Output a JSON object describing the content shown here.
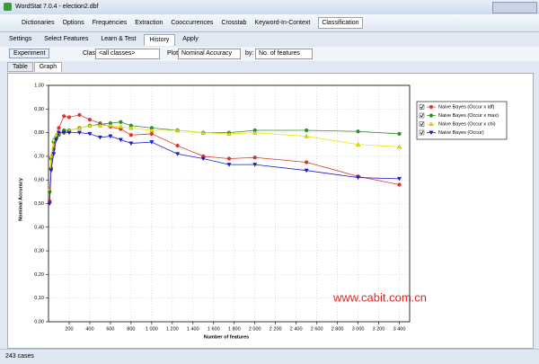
{
  "window": {
    "title": "WordStat 7.0.4 - election2.dbf"
  },
  "menu": [
    "Dictionaries",
    "Options",
    "Frequencies",
    "Extraction",
    "Cooccurrences",
    "Crosstab",
    "Keyword-In-Context",
    "Classification"
  ],
  "subtabs": [
    "Settings",
    "Select Features",
    "Learn & Test",
    "History",
    "Apply"
  ],
  "toolbar": {
    "button": "Experiment",
    "class_label": "Class:",
    "class_value": "<all classes>",
    "plot_label": "Plot:",
    "plot_value": "Nominal Accuracy",
    "by_label": "by:",
    "by_value": "No. of features"
  },
  "view_tabs": [
    "Table",
    "Graph"
  ],
  "watermark": "www.cabit.com.cn",
  "status": "243 cases",
  "chart_data": {
    "type": "line",
    "x_label": "Number of features",
    "y_label": "Nominal Accuracy",
    "x": [
      10,
      25,
      50,
      75,
      100,
      150,
      200,
      300,
      400,
      500,
      600,
      700,
      800,
      1000,
      1250,
      1500,
      1750,
      2000,
      2500,
      3000,
      3400
    ],
    "series": [
      {
        "name": "Naive Bayes (Occur x idf)",
        "color": "#e03030",
        "marker": "circle",
        "values": [
          0.51,
          0.65,
          0.73,
          0.78,
          0.82,
          0.87,
          0.865,
          0.875,
          0.855,
          0.84,
          0.825,
          0.815,
          0.79,
          0.795,
          0.745,
          0.7,
          0.69,
          0.695,
          0.675,
          0.615,
          0.58
        ]
      },
      {
        "name": "Naive Bayes (Occur x max)",
        "color": "#2e8b2e",
        "marker": "circle",
        "values": [
          0.55,
          0.69,
          0.76,
          0.78,
          0.79,
          0.81,
          0.81,
          0.82,
          0.83,
          0.835,
          0.84,
          0.845,
          0.83,
          0.82,
          0.81,
          0.8,
          0.8,
          0.81,
          0.81,
          0.805,
          0.795
        ]
      },
      {
        "name": "Naive Bayes (Occur x chi)",
        "color": "#e8e800",
        "marker": "triangle",
        "values": [
          0.56,
          0.7,
          0.77,
          0.79,
          0.8,
          0.8,
          0.81,
          0.82,
          0.83,
          0.83,
          0.83,
          0.825,
          0.82,
          0.81,
          0.81,
          0.8,
          0.795,
          0.8,
          0.785,
          0.75,
          0.74
        ]
      },
      {
        "name": "Naive Bayes (Occur)",
        "color": "#1a1ad0",
        "marker": "triangle-down",
        "values": [
          0.5,
          0.64,
          0.71,
          0.77,
          0.8,
          0.8,
          0.8,
          0.8,
          0.795,
          0.78,
          0.785,
          0.77,
          0.755,
          0.76,
          0.71,
          0.69,
          0.665,
          0.665,
          0.64,
          0.61,
          0.605
        ]
      }
    ],
    "xlim": [
      0,
      3500
    ],
    "xticks": [
      200,
      400,
      600,
      800,
      {
        "value": 1000,
        "label": "1 000"
      },
      {
        "value": 1200,
        "label": "1 200"
      },
      {
        "value": 1400,
        "label": "1 400"
      },
      {
        "value": 1600,
        "label": "1 600"
      },
      {
        "value": 1800,
        "label": "1 800"
      },
      {
        "value": 2000,
        "label": "2 000"
      },
      {
        "value": 2200,
        "label": "2 200"
      },
      {
        "value": 2400,
        "label": "2 400"
      },
      {
        "value": 2600,
        "label": "2 600"
      },
      {
        "value": 2800,
        "label": "2 800"
      },
      {
        "value": 3000,
        "label": "3 000"
      },
      {
        "value": 3200,
        "label": "3 200"
      },
      {
        "value": 3400,
        "label": "3 400"
      }
    ],
    "ylim": [
      0,
      1
    ],
    "yticks": [
      {
        "value": 0,
        "label": "0,00"
      },
      {
        "value": 0.1,
        "label": "0,10"
      },
      {
        "value": 0.2,
        "label": "0,20"
      },
      {
        "value": 0.3,
        "label": "0,30"
      },
      {
        "value": 0.4,
        "label": "0,40"
      },
      {
        "value": 0.5,
        "label": "0,50"
      },
      {
        "value": 0.6,
        "label": "0,60"
      },
      {
        "value": 0.7,
        "label": "0,70"
      },
      {
        "value": 0.8,
        "label": "0,80"
      },
      {
        "value": 0.9,
        "label": "0,90"
      },
      {
        "value": 1,
        "label": "1,00"
      }
    ],
    "grid": true,
    "legend": "upper right"
  }
}
